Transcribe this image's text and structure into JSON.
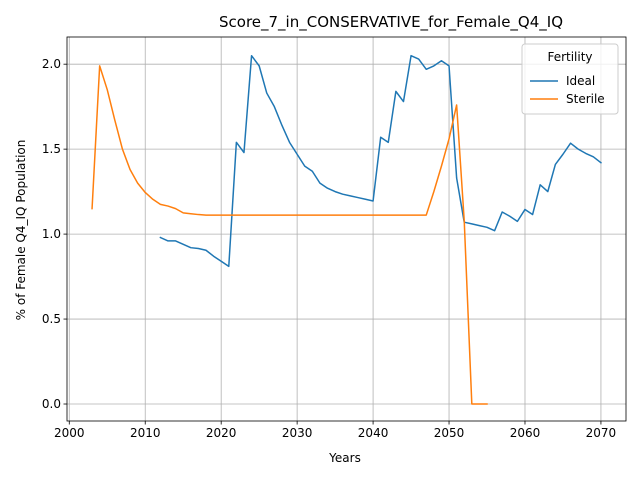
{
  "chart_data": {
    "type": "line",
    "title": "Score_7_in_CONSERVATIVE_for_Female_Q4_IQ",
    "xlabel": "Years",
    "ylabel": "% of Female Q4_IQ Population",
    "xlim": [
      1999.7,
      2073.3
    ],
    "ylim": [
      -0.1,
      2.16
    ],
    "xticks": [
      2000,
      2010,
      2020,
      2030,
      2040,
      2050,
      2060,
      2070
    ],
    "yticks": [
      0.0,
      0.5,
      1.0,
      1.5,
      2.0
    ],
    "xtick_labels": [
      "2000",
      "2010",
      "2020",
      "2030",
      "2040",
      "2050",
      "2060",
      "2070"
    ],
    "ytick_labels": [
      "0.0",
      "0.5",
      "1.0",
      "1.5",
      "2.0"
    ],
    "grid": true,
    "legend": {
      "title": "Fertility",
      "position": "top-right"
    },
    "series": [
      {
        "name": "Ideal",
        "color": "#1f77b4",
        "points": [
          [
            2012,
            0.98
          ],
          [
            2013,
            0.96
          ],
          [
            2014,
            0.96
          ],
          [
            2015,
            0.94
          ],
          [
            2016,
            0.92
          ],
          [
            2017,
            0.915
          ],
          [
            2018,
            0.905
          ],
          [
            2019,
            0.87
          ],
          [
            2020,
            0.84
          ],
          [
            2021,
            0.81
          ],
          [
            2022,
            1.54
          ],
          [
            2023,
            1.48
          ],
          [
            2024,
            2.05
          ],
          [
            2025,
            1.99
          ],
          [
            2026,
            1.83
          ],
          [
            2027,
            1.75
          ],
          [
            2028,
            1.64
          ],
          [
            2029,
            1.54
          ],
          [
            2030,
            1.47
          ],
          [
            2031,
            1.4
          ],
          [
            2032,
            1.37
          ],
          [
            2033,
            1.3
          ],
          [
            2034,
            1.27
          ],
          [
            2035,
            1.25
          ],
          [
            2036,
            1.235
          ],
          [
            2037,
            1.225
          ],
          [
            2038,
            1.215
          ],
          [
            2039,
            1.205
          ],
          [
            2040,
            1.195
          ],
          [
            2041,
            1.57
          ],
          [
            2042,
            1.54
          ],
          [
            2043,
            1.84
          ],
          [
            2044,
            1.78
          ],
          [
            2045,
            2.05
          ],
          [
            2046,
            2.03
          ],
          [
            2047,
            1.97
          ],
          [
            2048,
            1.99
          ],
          [
            2049,
            2.02
          ],
          [
            2050,
            1.99
          ],
          [
            2051,
            1.33
          ],
          [
            2052,
            1.07
          ],
          [
            2053,
            1.06
          ],
          [
            2054,
            1.05
          ],
          [
            2055,
            1.04
          ],
          [
            2056,
            1.02
          ],
          [
            2057,
            1.13
          ],
          [
            2058,
            1.105
          ],
          [
            2059,
            1.075
          ],
          [
            2060,
            1.145
          ],
          [
            2061,
            1.115
          ],
          [
            2062,
            1.29
          ],
          [
            2063,
            1.25
          ],
          [
            2064,
            1.41
          ],
          [
            2065,
            1.47
          ],
          [
            2066,
            1.535
          ],
          [
            2067,
            1.5
          ],
          [
            2068,
            1.475
          ],
          [
            2069,
            1.455
          ],
          [
            2070,
            1.42
          ]
        ]
      },
      {
        "name": "Sterile",
        "color": "#ff7f0e",
        "points": [
          [
            2003,
            1.15
          ],
          [
            2004,
            1.99
          ],
          [
            2005,
            1.85
          ],
          [
            2006,
            1.67
          ],
          [
            2007,
            1.5
          ],
          [
            2008,
            1.38
          ],
          [
            2009,
            1.3
          ],
          [
            2010,
            1.245
          ],
          [
            2011,
            1.205
          ],
          [
            2012,
            1.175
          ],
          [
            2013,
            1.165
          ],
          [
            2014,
            1.15
          ],
          [
            2015,
            1.125
          ],
          [
            2016,
            1.12
          ],
          [
            2017,
            1.115
          ],
          [
            2018,
            1.112
          ],
          [
            2019,
            1.112
          ],
          [
            2020,
            1.112
          ],
          [
            2021,
            1.112
          ],
          [
            2022,
            1.112
          ],
          [
            2023,
            1.112
          ],
          [
            2024,
            1.112
          ],
          [
            2025,
            1.112
          ],
          [
            2026,
            1.112
          ],
          [
            2027,
            1.112
          ],
          [
            2028,
            1.112
          ],
          [
            2029,
            1.112
          ],
          [
            2030,
            1.112
          ],
          [
            2031,
            1.112
          ],
          [
            2032,
            1.112
          ],
          [
            2033,
            1.112
          ],
          [
            2034,
            1.112
          ],
          [
            2035,
            1.112
          ],
          [
            2036,
            1.112
          ],
          [
            2037,
            1.112
          ],
          [
            2038,
            1.112
          ],
          [
            2039,
            1.112
          ],
          [
            2040,
            1.112
          ],
          [
            2041,
            1.112
          ],
          [
            2042,
            1.112
          ],
          [
            2043,
            1.112
          ],
          [
            2044,
            1.112
          ],
          [
            2045,
            1.112
          ],
          [
            2046,
            1.112
          ],
          [
            2047,
            1.112
          ],
          [
            2048,
            1.25
          ],
          [
            2049,
            1.4
          ],
          [
            2050,
            1.56
          ],
          [
            2051,
            1.76
          ],
          [
            2052,
            1.08
          ],
          [
            2053,
            0.0
          ],
          [
            2054,
            0.0
          ],
          [
            2055,
            0.0
          ]
        ]
      }
    ]
  }
}
